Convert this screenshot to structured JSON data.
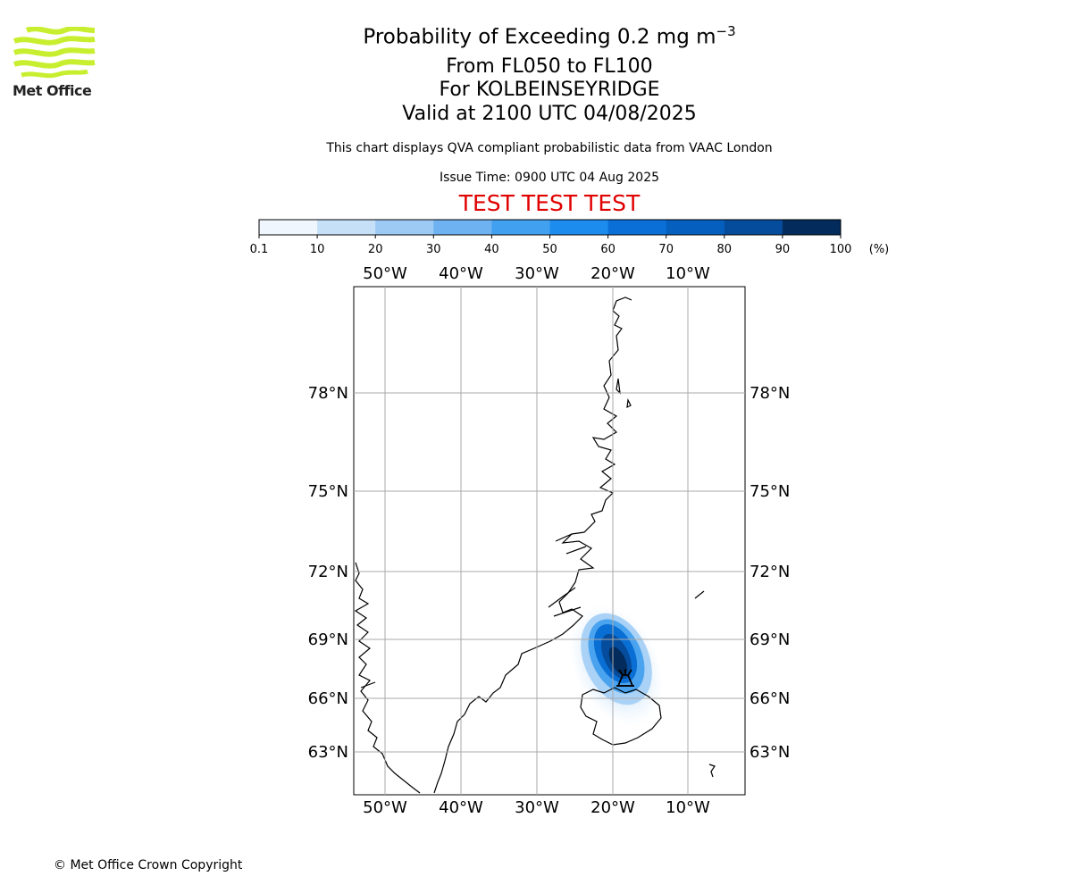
{
  "brand": {
    "logo_text": "Met Office"
  },
  "header": {
    "title": "Probability of Exceeding 0.2 mg m",
    "title_exponent": "−3",
    "flight_levels": "From FL050 to FL100",
    "location": "For KOLBEINSEYRIDGE",
    "valid_time": "Valid at 2100 UTC 04/08/2025",
    "description": "This chart displays QVA compliant probabilistic data from VAAC London",
    "issue_time": "Issue Time: 0900 UTC 04 Aug 2025",
    "test_banner": "TEST TEST TEST"
  },
  "colorbar": {
    "unit": "(%)",
    "ticks": [
      "0.1",
      "10",
      "20",
      "30",
      "40",
      "50",
      "60",
      "70",
      "80",
      "90",
      "100"
    ],
    "colors": [
      "#f0f6fd",
      "#c6e0f8",
      "#9dcaf4",
      "#6fb2f1",
      "#42a0f0",
      "#1c8cee",
      "#0a70d8",
      "#055fbf",
      "#054c9c",
      "#032c5d"
    ]
  },
  "map": {
    "lon_labels": [
      "50°W",
      "40°W",
      "30°W",
      "20°W",
      "10°W"
    ],
    "lat_labels": [
      "78°N",
      "75°N",
      "72°N",
      "69°N",
      "66°N",
      "63°N"
    ],
    "volcano_symbol": "volcano-icon"
  },
  "footer": {
    "copyright": "© Met Office Crown Copyright"
  }
}
